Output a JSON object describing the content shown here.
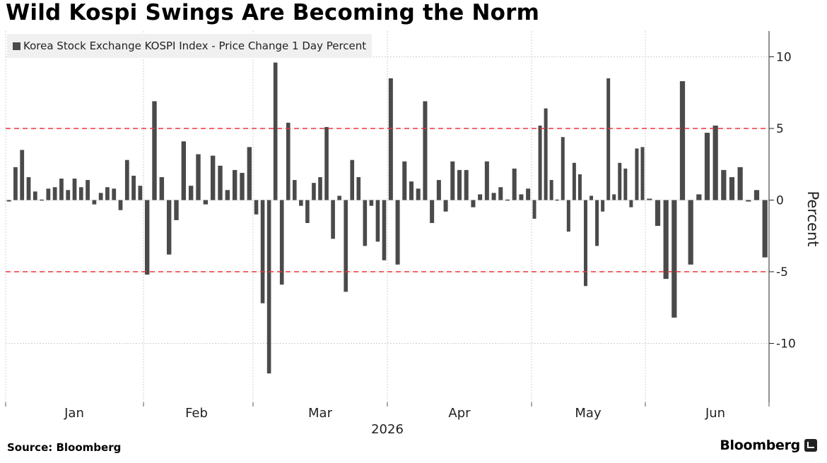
{
  "title": "Wild Kospi Swings Are Becoming the Norm",
  "source": "Source: Bloomberg",
  "brand": "Bloomberg",
  "colors": {
    "bar": "#4a4a4a",
    "reference_line": "#e8353b",
    "grid": "#cfcfcf",
    "legend_bg": "#f0f0f0"
  },
  "chart_data": {
    "type": "bar",
    "legend": [
      "Korea Stock Exchange KOSPI Index - Price Change 1 Day Percent"
    ],
    "legend_placement": "top-left",
    "ylabel": "Percent",
    "ylim": [
      -14,
      12
    ],
    "yticks": [
      10,
      5,
      0,
      -5,
      -10
    ],
    "ytick_labels": [
      "10",
      "5",
      "0",
      "-5",
      "-10"
    ],
    "reference_lines": [
      5,
      -5
    ],
    "grid": true,
    "x_month_labels": [
      "Jan",
      "Feb",
      "Mar",
      "Apr",
      "May",
      "Jun"
    ],
    "x_year_label": "2026",
    "months": [
      {
        "name": "Jan",
        "values": [
          -0.1,
          2.3,
          3.5,
          1.6,
          0.6,
          0.0,
          0.8,
          0.9,
          1.5,
          0.7,
          1.5,
          0.9,
          1.4,
          -0.3,
          0.5,
          0.9,
          0.8,
          -0.7,
          2.8,
          1.7,
          1.0
        ]
      },
      {
        "name": "Feb",
        "values": [
          -5.2,
          6.9,
          1.6,
          -3.8,
          -1.4,
          4.1,
          1.0,
          3.2,
          -0.3,
          3.1,
          2.4,
          0.7,
          2.1,
          1.9,
          3.7
        ]
      },
      {
        "name": "Mar",
        "values": [
          -1.0,
          -7.2,
          -12.1,
          9.6,
          -5.9,
          5.4,
          1.4,
          -0.4,
          -1.6,
          1.2,
          1.6,
          5.1,
          -2.7,
          0.3,
          -6.4,
          2.8,
          1.6,
          -3.2,
          -0.4,
          -2.9,
          -4.2
        ]
      },
      {
        "name": "Apr",
        "values": [
          8.5,
          -4.5,
          2.7,
          1.3,
          0.8,
          6.9,
          -1.6,
          1.4,
          -0.8,
          2.7,
          2.1,
          2.1,
          -0.5,
          0.4,
          2.7,
          0.5,
          0.9,
          0.0,
          2.2,
          0.4,
          0.8
        ]
      },
      {
        "name": "May",
        "values": [
          -1.3,
          5.2,
          6.4,
          1.4,
          0.0,
          4.4,
          -2.2,
          2.6,
          1.8,
          -6.0,
          0.3,
          -3.2,
          -0.8,
          8.5,
          0.4,
          2.6,
          2.2,
          -0.5,
          3.6,
          3.7
        ]
      },
      {
        "name": "Jun",
        "values": [
          0.1,
          -1.8,
          -5.5,
          -8.2,
          8.3,
          -4.5,
          0.4,
          4.7,
          5.2,
          2.1,
          1.6,
          2.3,
          -0.1,
          0.7,
          -4.0
        ]
      }
    ]
  }
}
